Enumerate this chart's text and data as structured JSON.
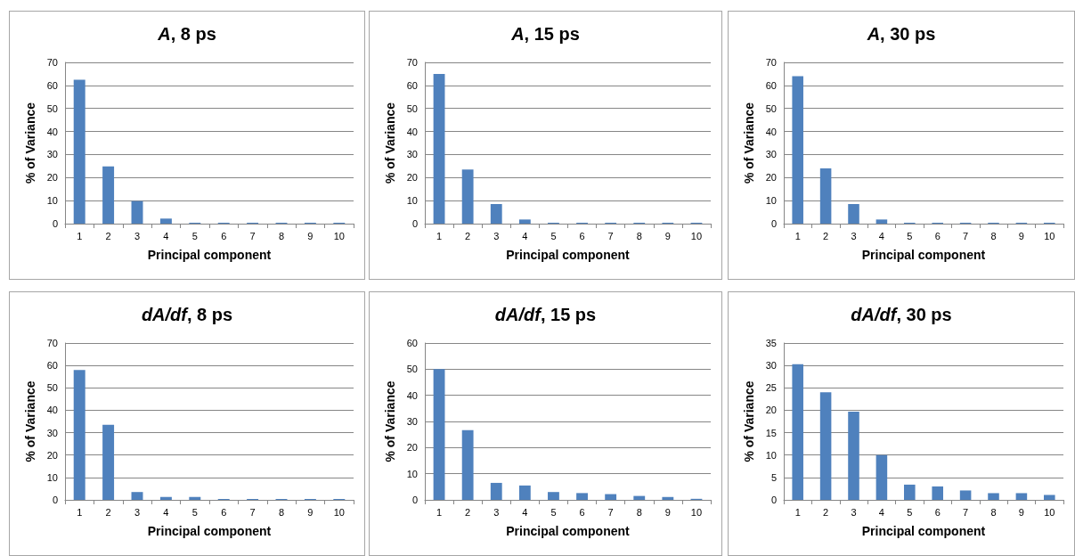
{
  "chart_data": [
    {
      "type": "bar",
      "title": "A, 8 ps",
      "xlabel": "Principal component",
      "ylabel": "% of Variance",
      "categories": [
        "1",
        "2",
        "3",
        "4",
        "5",
        "6",
        "7",
        "8",
        "9",
        "10"
      ],
      "values": [
        62.5,
        24.8,
        9.8,
        2.2,
        0.4,
        0.4,
        0.4,
        0.4,
        0.4,
        0.4
      ],
      "color": "#4f81bd",
      "ylim": [
        0,
        70
      ],
      "yticks": [
        0,
        10,
        20,
        30,
        40,
        50,
        60,
        70
      ],
      "grid": "y"
    },
    {
      "type": "bar",
      "title": "A, 15 ps",
      "xlabel": "Principal component",
      "ylabel": "% of Variance",
      "categories": [
        "1",
        "2",
        "3",
        "4",
        "5",
        "6",
        "7",
        "8",
        "9",
        "10"
      ],
      "values": [
        65,
        23.5,
        8.5,
        1.8,
        0.4,
        0.4,
        0.4,
        0.4,
        0.4,
        0.4
      ],
      "color": "#4f81bd",
      "ylim": [
        0,
        70
      ],
      "yticks": [
        0,
        10,
        20,
        30,
        40,
        50,
        60,
        70
      ],
      "grid": "y"
    },
    {
      "type": "bar",
      "title": "A, 30 ps",
      "xlabel": "Principal component",
      "ylabel": "% of Variance",
      "categories": [
        "1",
        "2",
        "3",
        "4",
        "5",
        "6",
        "7",
        "8",
        "9",
        "10"
      ],
      "values": [
        64,
        24,
        8.5,
        1.8,
        0.4,
        0.4,
        0.4,
        0.4,
        0.4,
        0.4
      ],
      "color": "#4f81bd",
      "ylim": [
        0,
        70
      ],
      "yticks": [
        0,
        10,
        20,
        30,
        40,
        50,
        60,
        70
      ],
      "grid": "y"
    },
    {
      "type": "bar",
      "title": "dA/df, 8 ps",
      "xlabel": "Principal component",
      "ylabel": "% of Variance",
      "categories": [
        "1",
        "2",
        "3",
        "4",
        "5",
        "6",
        "7",
        "8",
        "9",
        "10"
      ],
      "values": [
        58,
        33.5,
        3.5,
        1.3,
        1.3,
        0.4,
        0.4,
        0.4,
        0.4,
        0.4
      ],
      "color": "#4f81bd",
      "ylim": [
        0,
        70
      ],
      "yticks": [
        0,
        10,
        20,
        30,
        40,
        50,
        60,
        70
      ],
      "grid": "y"
    },
    {
      "type": "bar",
      "title": "dA/df, 15 ps",
      "xlabel": "Principal component",
      "ylabel": "% of Variance",
      "categories": [
        "1",
        "2",
        "3",
        "4",
        "5",
        "6",
        "7",
        "8",
        "9",
        "10"
      ],
      "values": [
        50,
        26.7,
        6.5,
        5.5,
        3,
        2.6,
        2.2,
        1.5,
        1.1,
        0.4
      ],
      "color": "#4f81bd",
      "ylim": [
        0,
        60
      ],
      "yticks": [
        0,
        10,
        20,
        30,
        40,
        50,
        60
      ],
      "grid": "y"
    },
    {
      "type": "bar",
      "title": "dA/df, 30 ps",
      "xlabel": "Principal component",
      "ylabel": "% of Variance",
      "categories": [
        "1",
        "2",
        "3",
        "4",
        "5",
        "6",
        "7",
        "8",
        "9",
        "10"
      ],
      "values": [
        30.3,
        24,
        19.7,
        10,
        3.4,
        3,
        2.1,
        1.5,
        1.5,
        1.1
      ],
      "color": "#4f81bd",
      "ylim": [
        0,
        35
      ],
      "yticks": [
        0,
        5,
        10,
        15,
        20,
        25,
        30,
        35
      ],
      "grid": "y"
    }
  ]
}
